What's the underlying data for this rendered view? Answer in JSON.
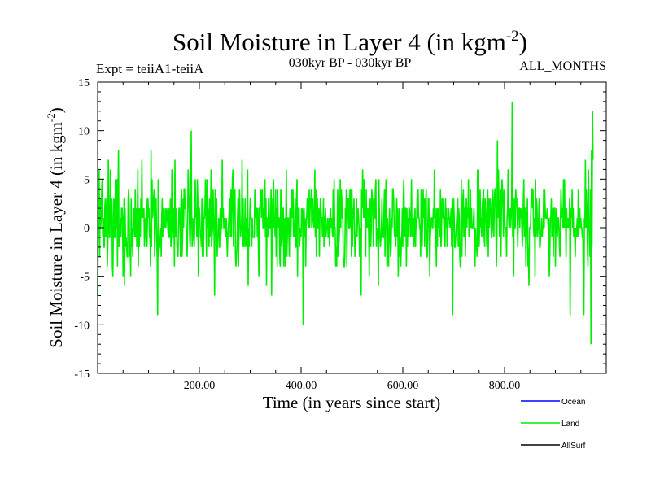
{
  "chart_data": {
    "type": "line",
    "title_main": "Soil Moisture in Layer 4 (in kgm",
    "title_sup": "-2",
    "title_close": ")",
    "expt_label": "Expt = teiiA1-teiiA",
    "period_label": "030kyr BP - 030kyr BP",
    "months_label": "ALL_MONTHS",
    "ylabel_main": "Soil Moisture in Layer 4 (in kgm",
    "ylabel_sup": "-2",
    "ylabel_close": ")",
    "xlabel": "Time (in years since start)",
    "xlim": [
      0,
      1000
    ],
    "ylim": [
      -15,
      15
    ],
    "x_ticks": [
      200,
      400,
      600,
      800
    ],
    "x_tick_labels": [
      "200.00",
      "400.00",
      "600.00",
      "800.00"
    ],
    "y_ticks": [
      -15,
      -10,
      -5,
      0,
      5,
      10,
      15
    ],
    "y_tick_labels": [
      "-15",
      "-10",
      "-5",
      "0",
      "5",
      "10",
      "15"
    ],
    "legend": [
      {
        "name": "Ocean",
        "color": "#0000ff"
      },
      {
        "name": "Land",
        "color": "#00ee00"
      },
      {
        "name": "AllSurf",
        "color": "#000000"
      }
    ],
    "series": [
      {
        "name": "Land",
        "color": "#00ee00",
        "x_start": 0,
        "x_step": 1,
        "values": [
          -7,
          -1,
          3,
          6,
          -3,
          3,
          0,
          1,
          4,
          5,
          -1,
          1,
          -2,
          -2,
          2,
          3,
          -1,
          0,
          3,
          -4,
          -2,
          7,
          2,
          -1,
          -1,
          6,
          1,
          0,
          3,
          -4,
          -5,
          1,
          3,
          -1,
          -1,
          5,
          0,
          0,
          5,
          -4,
          3,
          8,
          -2,
          -1,
          0,
          1,
          -1,
          2,
          2,
          1,
          -5,
          -1,
          3,
          -6,
          2,
          -2,
          -1,
          -2,
          -3,
          -3,
          3,
          4,
          2,
          -3,
          -2,
          -5,
          3,
          -2,
          0,
          -3,
          1,
          2,
          0,
          -1,
          4,
          -1,
          2,
          -2,
          1,
          6,
          -4,
          2,
          -2,
          2,
          -1,
          3,
          1,
          7,
          1,
          2,
          1,
          2,
          -2,
          -1,
          1,
          0,
          3,
          -2,
          1,
          3,
          1,
          2,
          -1,
          -1,
          -4,
          8,
          -2,
          5,
          1,
          2,
          3,
          4,
          -3,
          0,
          1,
          3,
          -1,
          -3,
          -9,
          5,
          -3,
          -2,
          -2,
          -1,
          0,
          -3,
          1,
          3,
          -1,
          2,
          0,
          1,
          0,
          2,
          0,
          1,
          2,
          1,
          0,
          -1,
          2,
          -1,
          -1,
          3,
          -2,
          -1,
          6,
          2,
          -1,
          -1,
          2,
          -4,
          7,
          -1,
          2,
          0,
          -2,
          -2,
          -3,
          0,
          2,
          2,
          0,
          -3,
          3,
          4,
          -3,
          -1,
          3,
          0,
          4,
          4,
          2,
          2,
          0,
          -1,
          -3,
          1,
          6,
          4,
          2,
          -1,
          -2,
          1,
          10,
          1,
          -2,
          1,
          0,
          -1,
          -2,
          1,
          5,
          1,
          2,
          -1,
          5,
          3,
          -5,
          2,
          2,
          1,
          -1,
          -1,
          -2,
          3,
          -3,
          3,
          -3,
          1,
          1,
          2,
          5,
          1,
          -3,
          5,
          0,
          2,
          0,
          -2,
          3,
          -1,
          1,
          6,
          -2,
          -1,
          0,
          4,
          1,
          -1,
          -7,
          4,
          0,
          -1,
          3,
          -3,
          -1,
          -1,
          1,
          -2,
          -2,
          2,
          -1,
          0,
          0,
          7,
          1,
          2,
          0,
          0,
          1,
          0,
          -1,
          1,
          -1,
          -3,
          -1,
          0,
          1,
          2,
          3,
          -1,
          4,
          -1,
          2,
          5,
          6,
          -2,
          2,
          3,
          4,
          -3,
          -4,
          -3,
          -2,
          1,
          3,
          -4,
          1,
          4,
          1,
          -1,
          0,
          0,
          7,
          -2,
          3,
          -1,
          -2,
          -1,
          3,
          -2,
          -1,
          1,
          -2,
          6,
          -6,
          0,
          -2,
          1,
          3,
          1,
          1,
          -2,
          1,
          -1,
          -1,
          -1,
          -1,
          4,
          1,
          2,
          2,
          2,
          -1,
          2,
          -2,
          -5,
          2,
          2,
          3,
          4,
          1,
          3,
          4,
          0,
          0,
          2,
          0,
          5,
          -1,
          3,
          -6,
          1,
          1,
          -1,
          3,
          3,
          0,
          0,
          0,
          4,
          -7,
          0,
          3,
          0,
          5,
          0,
          1,
          -1,
          4,
          -3,
          2,
          -4,
          4,
          0,
          1,
          1,
          -3,
          -4,
          4,
          3,
          -2,
          -1,
          2,
          2,
          -4,
          0,
          1,
          -4,
          1,
          6,
          -3,
          -1,
          1,
          1,
          -1,
          -3,
          2,
          0,
          -1,
          2,
          4,
          1,
          4,
          -1,
          0,
          -1,
          3,
          -2,
          -2,
          3,
          5,
          -5,
          2,
          2,
          2,
          -2,
          -1,
          0,
          -1,
          2,
          0,
          2,
          -10,
          1,
          2,
          -1,
          1,
          -4,
          0,
          1,
          3,
          1,
          1,
          0,
          4,
          0,
          3,
          2,
          4,
          0,
          1,
          3,
          1,
          0,
          1,
          6,
          -1,
          4,
          -3,
          3,
          3,
          0,
          0,
          2,
          -3,
          1,
          3,
          2,
          1,
          1,
          -1,
          0,
          3,
          -2,
          -1,
          1,
          2,
          -1,
          0,
          0,
          1,
          -1,
          -1,
          1,
          -2,
          0,
          2,
          0,
          1,
          0,
          -1,
          4,
          -1,
          5,
          0,
          0,
          -4,
          -2,
          -4,
          0,
          4,
          -3,
          -2,
          -1,
          1,
          5,
          0,
          4,
          3,
          1,
          1,
          -3,
          -4,
          -4,
          -3,
          2,
          1,
          4,
          -4,
          1,
          3,
          3,
          0,
          0,
          4,
          0,
          4,
          -3,
          4,
          -2,
          2,
          1,
          3,
          -1,
          -3,
          -2,
          0,
          3,
          -1,
          1,
          2,
          1,
          0,
          -3,
          0,
          -1,
          -7,
          4,
          2,
          6,
          3,
          1,
          5,
          1,
          2,
          -3,
          4,
          0,
          2,
          0,
          2,
          -1,
          -5,
          1,
          3,
          -2,
          0,
          4,
          3,
          2,
          -2,
          3,
          1,
          1,
          4,
          5,
          -2,
          0,
          -1,
          -1,
          -6,
          5,
          1,
          -1,
          -2,
          -1,
          0,
          3,
          -1,
          -1,
          -1,
          2,
          4,
          -3,
          2,
          5,
          1,
          -4,
          1,
          -3,
          -4,
          0,
          2,
          -1,
          -3,
          -2,
          1,
          0,
          4,
          4,
          3,
          0,
          -1,
          0,
          -2,
          0,
          3,
          -1,
          2,
          -5,
          -1,
          2,
          -3,
          -1,
          -4,
          -2,
          -1,
          2,
          -2,
          3,
          5,
          1,
          -1,
          2,
          2,
          -4,
          2,
          -2,
          1,
          -1,
          2,
          2,
          1,
          -1,
          1,
          5,
          -1,
          1,
          -1,
          1,
          -2,
          1,
          2,
          -2,
          1,
          0,
          3,
          1,
          4,
          1,
          1,
          0,
          0,
          -3,
          4,
          0,
          -2,
          1,
          4,
          1,
          3,
          -2,
          3,
          2,
          4,
          -3,
          -3,
          -1,
          3,
          3,
          0,
          -5,
          -1,
          0,
          1,
          1,
          0,
          0,
          2,
          1,
          6,
          0,
          2,
          -1,
          -4,
          2,
          -2,
          2,
          0,
          1,
          0,
          -1,
          4,
          -2,
          -1,
          3,
          1,
          3,
          3,
          1,
          1,
          -2,
          3,
          0,
          2,
          -2,
          1,
          0,
          2,
          1,
          1,
          0,
          1,
          2,
          -2,
          3,
          -9,
          2,
          3,
          1,
          -2,
          -2,
          -1,
          0,
          1,
          2,
          3,
          -2,
          2,
          1,
          -3,
          -4,
          -4,
          5,
          -3,
          0,
          3,
          4,
          -1,
          2,
          2,
          -3,
          1,
          3,
          0,
          2,
          1,
          5,
          -1,
          2,
          0,
          4,
          0,
          2,
          0,
          0,
          0,
          1,
          2,
          -2,
          -4,
          0,
          -2,
          -2,
          -3,
          6,
          3,
          6,
          -2,
          0,
          4,
          0,
          1,
          -1,
          2,
          3,
          -1,
          4,
          -1,
          -2,
          3,
          2,
          1,
          -2,
          0,
          4,
          -3,
          3,
          0,
          2,
          3,
          2,
          -1,
          -1,
          1,
          4,
          0,
          -1,
          3,
          4,
          4,
          0,
          -4,
          -1,
          9,
          1,
          6,
          3,
          -1,
          0,
          4,
          -3,
          2,
          5,
          4,
          2,
          -1,
          4,
          2,
          0,
          0,
          0,
          -3,
          1,
          2,
          6,
          1,
          0,
          1,
          2,
          0,
          1,
          3,
          13,
          -1,
          1,
          -5,
          3,
          0,
          0,
          4,
          3,
          3,
          1,
          -2,
          1,
          2,
          2,
          0,
          2,
          1,
          2,
          0,
          -2,
          0,
          3,
          5,
          -1,
          2,
          2,
          -4,
          0,
          0,
          3,
          -4,
          -2,
          -6,
          0,
          0,
          0,
          2,
          4,
          4,
          2,
          4,
          0,
          -1,
          1,
          -5,
          5,
          -1,
          3,
          2,
          -1,
          0,
          1,
          3,
          -2,
          -2,
          -1,
          0,
          1,
          -1,
          0,
          0,
          4,
          0,
          4,
          2,
          1,
          1,
          1,
          2,
          1,
          0,
          1,
          -5,
          -3,
          1,
          1,
          3,
          -1,
          1,
          2,
          -3,
          2,
          2,
          2,
          -4,
          0,
          2,
          0,
          -1,
          1,
          1,
          0,
          -2,
          -3,
          1,
          4,
          2,
          1,
          2,
          0,
          5,
          0,
          5,
          0,
          2,
          -3,
          2,
          0,
          1,
          0,
          1,
          0,
          3,
          -9,
          -1,
          2,
          1,
          4,
          0,
          2,
          -1,
          0,
          -1,
          -3,
          0,
          -1,
          0,
          1,
          -1,
          4,
          -1,
          1,
          2,
          0,
          1,
          0,
          0,
          -1,
          -1,
          -5,
          -9,
          1,
          0,
          7,
          0,
          4,
          2,
          -2,
          -4,
          6,
          0,
          0,
          -3,
          4,
          -12,
          8,
          -2,
          12,
          7
        ]
      }
    ]
  }
}
